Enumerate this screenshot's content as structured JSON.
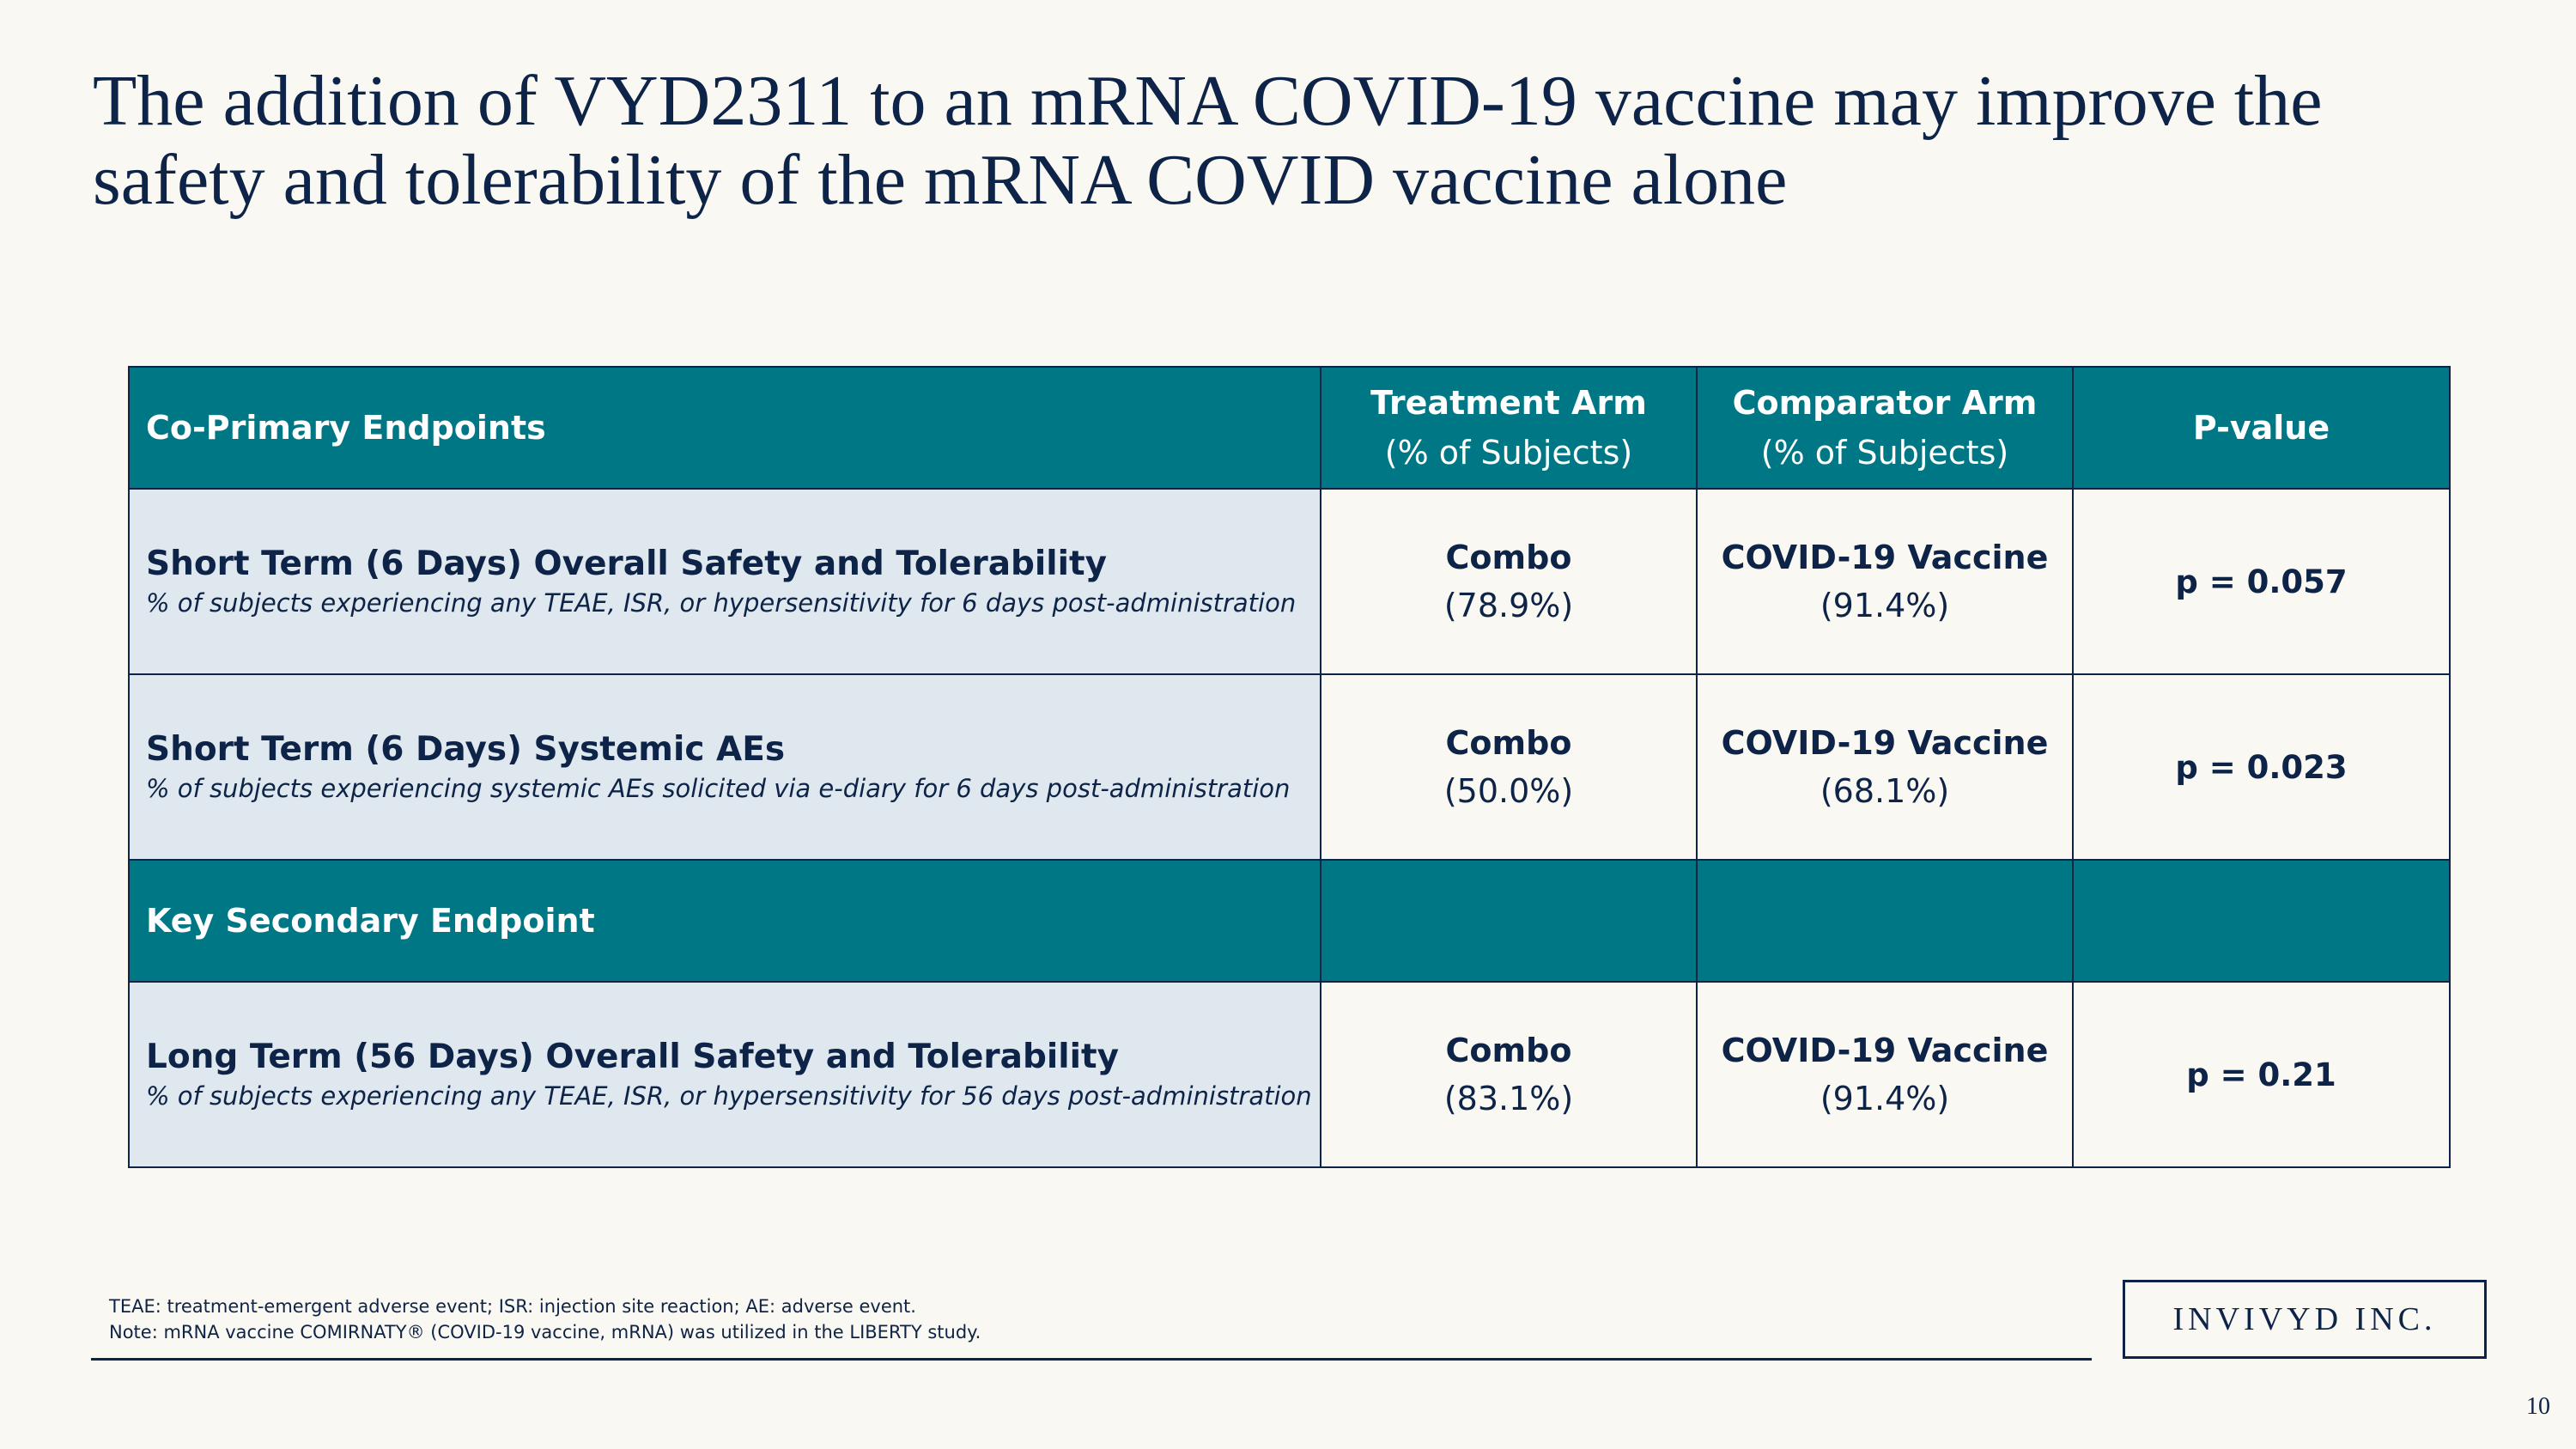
{
  "slide": {
    "title": "The addition of VYD2311 to an mRNA COVID-19 vaccine may improve the safety and tolerability of the mRNA COVID vaccine alone",
    "page_number": "10",
    "logo_text": "INVIVYD INC."
  },
  "table": {
    "header": {
      "endpoint_label": "Co-Primary Endpoints",
      "treatment_title": "Treatment Arm",
      "treatment_sub": "(% of Subjects)",
      "comparator_title": "Comparator Arm",
      "comparator_sub": "(% of Subjects)",
      "pvalue_title": "P-value"
    },
    "rows": [
      {
        "title": "Short Term (6 Days) Overall Safety and Tolerability",
        "desc": "% of subjects experiencing any TEAE, ISR, or hypersensitivity for 6 days post-administration",
        "treatment_name": "Combo",
        "treatment_pct": "(78.9%)",
        "comparator_name": "COVID-19 Vaccine",
        "comparator_pct": "(91.4%)",
        "pvalue": "p = 0.057"
      },
      {
        "title": "Short Term (6 Days) Systemic AEs",
        "desc": "% of subjects experiencing systemic AEs solicited via e-diary for 6 days post-administration",
        "treatment_name": "Combo",
        "treatment_pct": "(50.0%)",
        "comparator_name": "COVID-19 Vaccine",
        "comparator_pct": "(68.1%)",
        "pvalue": "p = 0.023"
      },
      {
        "title": "Long Term (56 Days) Overall Safety and Tolerability",
        "desc": "% of subjects experiencing any TEAE, ISR, or hypersensitivity for 56 days post-administration",
        "treatment_name": "Combo",
        "treatment_pct": "(83.1%)",
        "comparator_name": "COVID-19  Vaccine",
        "comparator_pct": "(91.4%)",
        "pvalue": "p = 0.21"
      }
    ],
    "secondary_label": "Key Secondary Endpoint"
  },
  "footnotes": {
    "line1": "TEAE: treatment-emergent adverse event; ISR: injection site reaction; AE: adverse event.",
    "line2": "Note: mRNA vaccine COMIRNATY® (COVID-19 vaccine, mRNA) was utilized in the LIBERTY study."
  },
  "colors": {
    "teal": "#007785",
    "navy": "#0d2347",
    "label_bg": "#dfe8ee",
    "page_bg": "#faf8f2"
  }
}
